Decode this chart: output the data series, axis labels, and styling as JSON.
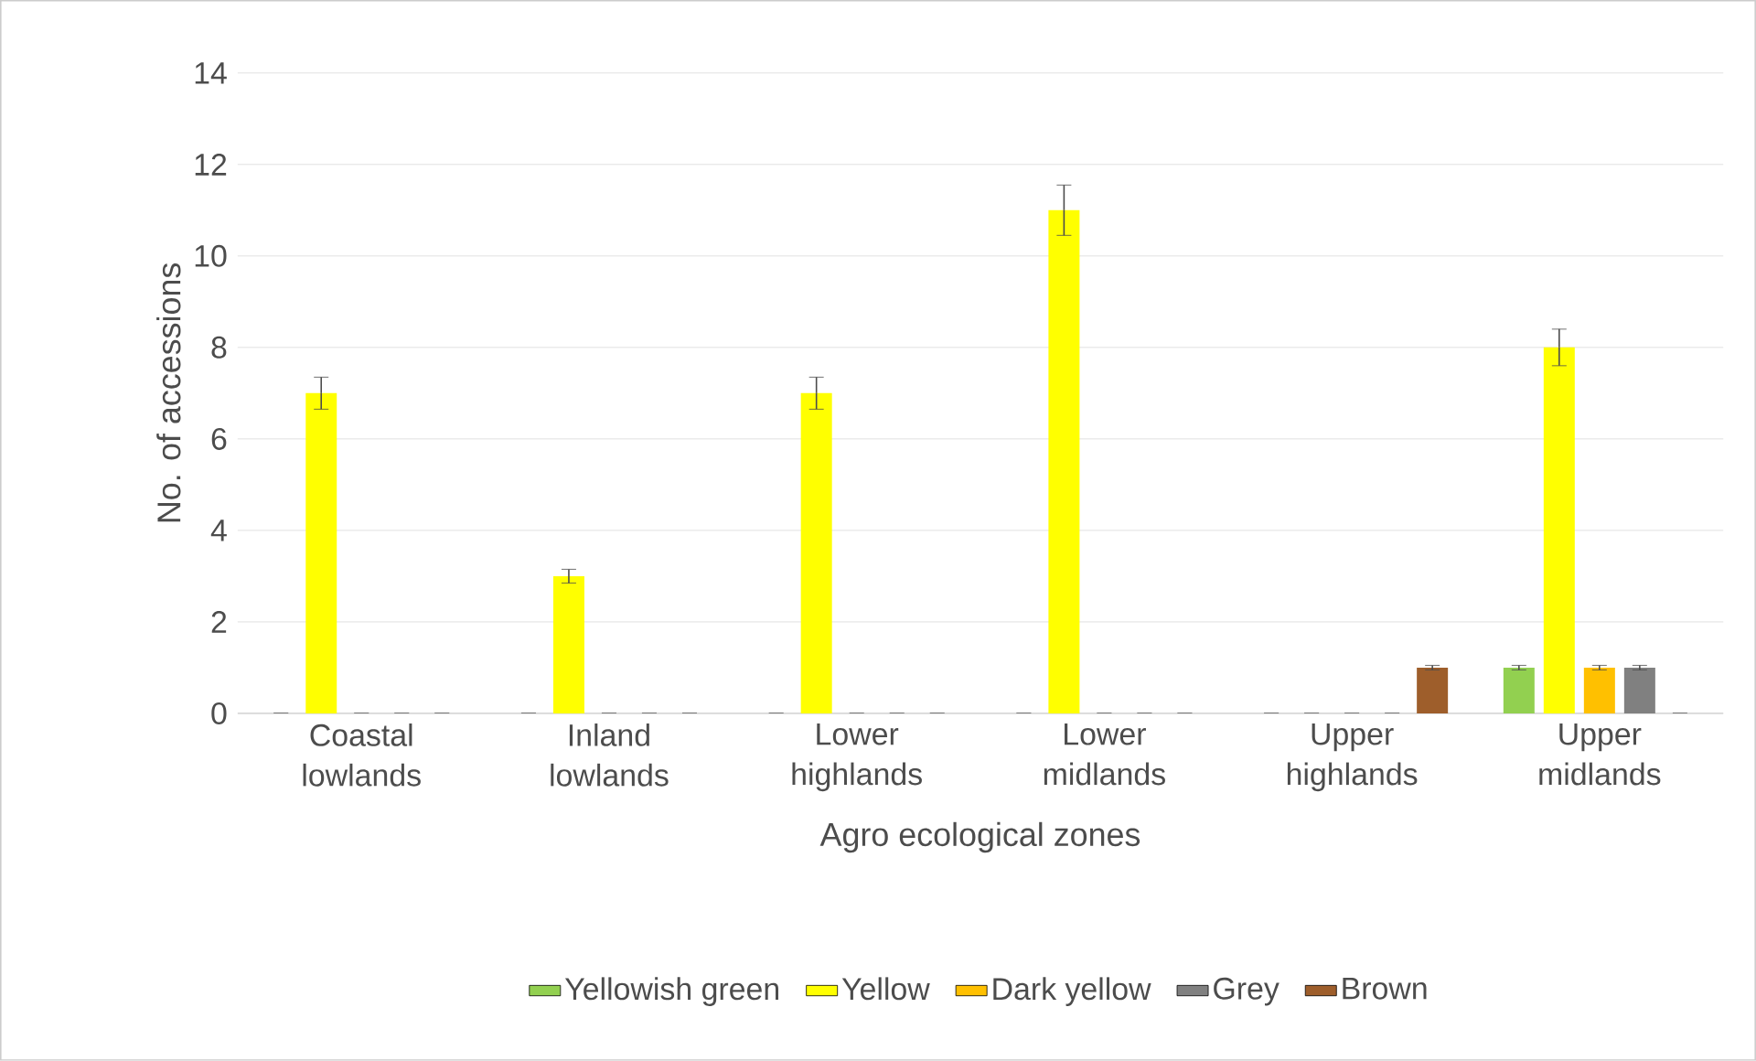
{
  "chart_data": {
    "type": "bar",
    "xlabel": "Agro ecological zones",
    "ylabel": "No. of accessions",
    "categories": [
      "Coastal lowlands",
      "Inland lowlands",
      "Lower highlands",
      "Lower midlands",
      "Upper highlands",
      "Upper midlands"
    ],
    "series": [
      {
        "name": "Yellowish green",
        "color": "#92d050",
        "values": [
          0,
          0,
          0,
          0,
          0,
          1
        ],
        "errors": [
          0,
          0,
          0,
          0,
          0,
          0.05
        ]
      },
      {
        "name": "Yellow",
        "color": "#ffff00",
        "values": [
          7,
          3,
          7,
          11,
          0,
          8
        ],
        "errors": [
          0.35,
          0.15,
          0.35,
          0.55,
          0,
          0.4
        ]
      },
      {
        "name": "Dark yellow",
        "color": "#ffc000",
        "values": [
          0,
          0,
          0,
          0,
          0,
          1
        ],
        "errors": [
          0,
          0,
          0,
          0,
          0,
          0.05
        ]
      },
      {
        "name": "Grey",
        "color": "#808080",
        "values": [
          0,
          0,
          0,
          0,
          0,
          1
        ],
        "errors": [
          0,
          0,
          0,
          0,
          0,
          0.05
        ]
      },
      {
        "name": "Brown",
        "color": "#9e5e2b",
        "values": [
          0,
          0,
          0,
          0,
          1,
          0
        ],
        "errors": [
          0,
          0,
          0,
          0,
          0.05,
          0
        ]
      }
    ],
    "ylim": [
      0,
      14
    ],
    "yticks": [
      0,
      2,
      4,
      6,
      8,
      10,
      12,
      14
    ],
    "grid": "y",
    "legend": "bottom"
  }
}
